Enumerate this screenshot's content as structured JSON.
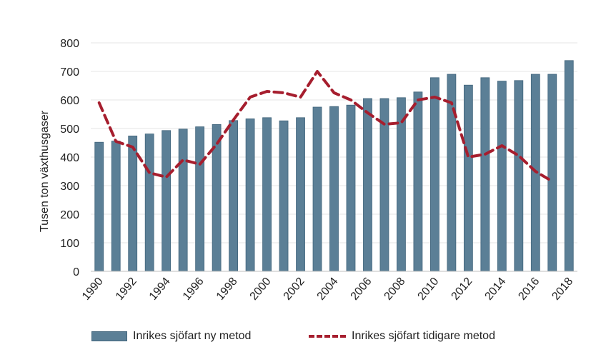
{
  "chart_data": {
    "type": "bar",
    "title": "",
    "xlabel": "",
    "ylabel": "Tusen ton växthusgaser",
    "ylim": [
      0,
      800
    ],
    "yticks": [
      0,
      100,
      200,
      300,
      400,
      500,
      600,
      700,
      800
    ],
    "grid": true,
    "legend_placement": "bottom",
    "categories": [
      "1990",
      "1991",
      "1992",
      "1993",
      "1994",
      "1995",
      "1996",
      "1997",
      "1998",
      "1999",
      "2000",
      "2001",
      "2002",
      "2003",
      "2004",
      "2005",
      "2006",
      "2007",
      "2008",
      "2009",
      "2010",
      "2011",
      "2012",
      "2013",
      "2014",
      "2015",
      "2016",
      "2017",
      "2018"
    ],
    "xtick_labels": [
      "1990",
      "1992",
      "1994",
      "1996",
      "1998",
      "2000",
      "2002",
      "2004",
      "2006",
      "2008",
      "2010",
      "2012",
      "2014",
      "2016",
      "2018"
    ],
    "series": [
      {
        "name": "Inrikes sjöfart ny metod",
        "type": "bar",
        "color": "#5b7f96",
        "values": [
          452,
          456,
          474,
          481,
          493,
          498,
          506,
          514,
          528,
          534,
          538,
          527,
          538,
          575,
          577,
          582,
          605,
          605,
          608,
          628,
          678,
          690,
          652,
          678,
          666,
          668,
          690,
          690,
          738
        ]
      },
      {
        "name": "Inrikes sjöfart tidigare metod",
        "type": "line",
        "style": "dashed",
        "color": "#a61e2e",
        "values": [
          590,
          455,
          435,
          345,
          330,
          390,
          375,
          445,
          530,
          610,
          630,
          625,
          610,
          700,
          625,
          600,
          555,
          515,
          520,
          600,
          610,
          590,
          400,
          410,
          440,
          405,
          350,
          315,
          null
        ]
      }
    ]
  }
}
